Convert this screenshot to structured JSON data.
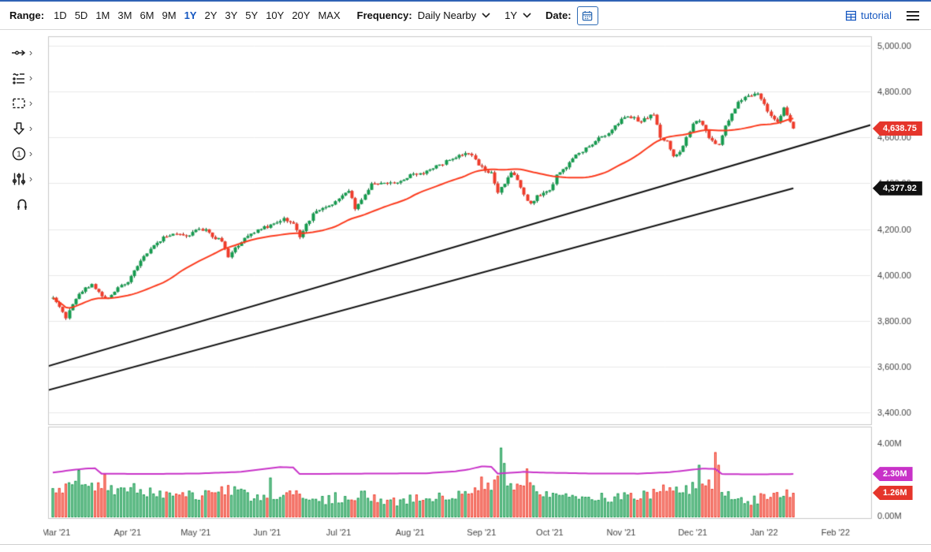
{
  "toolbar": {
    "range_label": "Range:",
    "range_options": [
      "1D",
      "5D",
      "1M",
      "3M",
      "6M",
      "9M",
      "1Y",
      "2Y",
      "3Y",
      "5Y",
      "10Y",
      "20Y",
      "MAX"
    ],
    "range_selected": "1Y",
    "frequency_label": "Frequency:",
    "frequency_value": "Daily Nearby",
    "period_value": "1Y",
    "date_label": "Date:",
    "tutorial_label": "tutorial"
  },
  "sidebar": {
    "chevron": "›",
    "tools": [
      "trendline-tool",
      "indicators-tool",
      "shapes-tool",
      "arrows-tool",
      "numbers-tool",
      "settings-tool",
      "magnet-tool"
    ]
  },
  "chart_data": {
    "type": "candlestick",
    "seed": 1337,
    "colors": {
      "up": "#169b4f",
      "up_stroke": "#0d5f31",
      "down": "#ef3b2a",
      "down_stroke": "#8f1d12",
      "ma": "#fb3b1e",
      "trend": "#111111",
      "open_interest": "#c832c8",
      "grid": "#e8e8e8",
      "border": "#c9c9c9",
      "axis_text": "#444444",
      "accent_blue": "#1557c0"
    },
    "price_panel": {
      "days": 229,
      "close_jitter": 7,
      "wick_extra": 9,
      "ma_period": 35,
      "ylim": [
        3400,
        5000
      ],
      "y_ticks": [
        {
          "label": "5,000.00",
          "value": 5000
        },
        {
          "label": "4,800.00",
          "value": 4800
        },
        {
          "label": "4,600.00",
          "value": 4600
        },
        {
          "label": "4,400.00",
          "value": 4400
        },
        {
          "label": "4,200.00",
          "value": 4200
        },
        {
          "label": "4,000.00",
          "value": 4000
        },
        {
          "label": "3,800.00",
          "value": 3800
        },
        {
          "label": "3,600.00",
          "value": 3600
        },
        {
          "label": "3,400.00",
          "value": 3400
        }
      ],
      "last_price": {
        "label": "4,638.75",
        "value": 4638.75,
        "color": "#e5352b"
      },
      "trendline_value": {
        "label": "4,377.92",
        "value": 4377.92,
        "color": "#111111"
      },
      "trendlines": [
        {
          "from_day": -2,
          "from_price": 3600,
          "to_day": 252,
          "to_price": 4655
        },
        {
          "from_day": -2,
          "from_price": 3495,
          "to_day": 228,
          "to_price": 4377.92
        }
      ],
      "close_waypoints": [
        [
          0,
          3905
        ],
        [
          2,
          3860
        ],
        [
          4,
          3812
        ],
        [
          6,
          3878
        ],
        [
          9,
          3932
        ],
        [
          12,
          3962
        ],
        [
          14,
          3925
        ],
        [
          16,
          3890
        ],
        [
          18,
          3918
        ],
        [
          21,
          3955
        ],
        [
          23,
          3972
        ],
        [
          25,
          4015
        ],
        [
          28,
          4080
        ],
        [
          31,
          4128
        ],
        [
          34,
          4165
        ],
        [
          38,
          4180
        ],
        [
          41,
          4170
        ],
        [
          44,
          4192
        ],
        [
          47,
          4202
        ],
        [
          49,
          4168
        ],
        [
          52,
          4150
        ],
        [
          54,
          4072
        ],
        [
          56,
          4118
        ],
        [
          59,
          4162
        ],
        [
          62,
          4188
        ],
        [
          64,
          4204
        ],
        [
          66,
          4208
        ],
        [
          69,
          4228
        ],
        [
          71,
          4246
        ],
        [
          74,
          4222
        ],
        [
          76,
          4166
        ],
        [
          78,
          4224
        ],
        [
          81,
          4280
        ],
        [
          84,
          4297
        ],
        [
          87,
          4320
        ],
        [
          89,
          4352
        ],
        [
          91,
          4365
        ],
        [
          93,
          4292
        ],
        [
          95,
          4328
        ],
        [
          98,
          4392
        ],
        [
          101,
          4405
        ],
        [
          104,
          4398
        ],
        [
          107,
          4411
        ],
        [
          110,
          4432
        ],
        [
          113,
          4442
        ],
        [
          116,
          4460
        ],
        [
          119,
          4480
        ],
        [
          122,
          4502
        ],
        [
          125,
          4522
        ],
        [
          127,
          4537
        ],
        [
          129,
          4524
        ],
        [
          131,
          4480
        ],
        [
          133,
          4460
        ],
        [
          135,
          4444
        ],
        [
          137,
          4360
        ],
        [
          139,
          4396
        ],
        [
          141,
          4442
        ],
        [
          143,
          4418
        ],
        [
          145,
          4352
        ],
        [
          147,
          4308
        ],
        [
          149,
          4346
        ],
        [
          151,
          4360
        ],
        [
          153,
          4364
        ],
        [
          155,
          4438
        ],
        [
          158,
          4472
        ],
        [
          161,
          4520
        ],
        [
          164,
          4550
        ],
        [
          166,
          4566
        ],
        [
          168,
          4596
        ],
        [
          170,
          4608
        ],
        [
          172,
          4632
        ],
        [
          174,
          4662
        ],
        [
          176,
          4688
        ],
        [
          179,
          4682
        ],
        [
          181,
          4668
        ],
        [
          183,
          4690
        ],
        [
          185,
          4700
        ],
        [
          187,
          4600
        ],
        [
          189,
          4582
        ],
        [
          191,
          4520
        ],
        [
          193,
          4540
        ],
        [
          195,
          4595
        ],
        [
          197,
          4660
        ],
        [
          199,
          4672
        ],
        [
          201,
          4625
        ],
        [
          203,
          4580
        ],
        [
          205,
          4572
        ],
        [
          207,
          4650
        ],
        [
          209,
          4702
        ],
        [
          211,
          4758
        ],
        [
          213,
          4780
        ],
        [
          215,
          4788
        ],
        [
          217,
          4786
        ],
        [
          219,
          4742
        ],
        [
          221,
          4688
        ],
        [
          223,
          4670
        ],
        [
          225,
          4726
        ],
        [
          227,
          4668
        ],
        [
          228,
          4638.75
        ]
      ]
    },
    "volume_panel": {
      "ylim": [
        0,
        4
      ],
      "y_ticks": [
        {
          "label": "4.00M",
          "value": 4
        },
        {
          "label": "0.00M",
          "value": 0
        }
      ],
      "last_volume": {
        "label": "1.26M",
        "value": 1.26,
        "color": "#e5352b"
      },
      "open_interest": {
        "label": "2.30M",
        "value": 2.3,
        "color": "#c832c8",
        "waypoints": [
          [
            0,
            2.38
          ],
          [
            6,
            2.52
          ],
          [
            10,
            2.6
          ],
          [
            13,
            2.62
          ],
          [
            15,
            2.32
          ],
          [
            30,
            2.3
          ],
          [
            45,
            2.33
          ],
          [
            58,
            2.42
          ],
          [
            64,
            2.55
          ],
          [
            70,
            2.68
          ],
          [
            74,
            2.66
          ],
          [
            76,
            2.3
          ],
          [
            95,
            2.32
          ],
          [
            115,
            2.34
          ],
          [
            124,
            2.45
          ],
          [
            128,
            2.55
          ],
          [
            132,
            2.72
          ],
          [
            135,
            2.7
          ],
          [
            137,
            2.32
          ],
          [
            145,
            2.42
          ],
          [
            150,
            2.38
          ],
          [
            165,
            2.33
          ],
          [
            180,
            2.32
          ],
          [
            190,
            2.4
          ],
          [
            196,
            2.52
          ],
          [
            200,
            2.6
          ],
          [
            204,
            2.58
          ],
          [
            206,
            2.3
          ],
          [
            215,
            2.28
          ],
          [
            228,
            2.3
          ]
        ]
      },
      "volume_jitter": 0.32,
      "volume_waypoints": [
        [
          0,
          1.45
        ],
        [
          6,
          1.7
        ],
        [
          10,
          1.9
        ],
        [
          14,
          1.6
        ],
        [
          18,
          1.45
        ],
        [
          24,
          1.55
        ],
        [
          30,
          1.25
        ],
        [
          38,
          1.1
        ],
        [
          44,
          1.05
        ],
        [
          50,
          1.25
        ],
        [
          54,
          1.45
        ],
        [
          60,
          1.05
        ],
        [
          66,
          0.95
        ],
        [
          72,
          1.15
        ],
        [
          78,
          1.0
        ],
        [
          84,
          0.9
        ],
        [
          90,
          1.05
        ],
        [
          94,
          1.15
        ],
        [
          100,
          0.95
        ],
        [
          106,
          0.85
        ],
        [
          112,
          0.9
        ],
        [
          118,
          0.95
        ],
        [
          124,
          1.05
        ],
        [
          130,
          1.35
        ],
        [
          136,
          1.7
        ],
        [
          140,
          1.5
        ],
        [
          144,
          1.55
        ],
        [
          148,
          1.6
        ],
        [
          152,
          1.3
        ],
        [
          156,
          1.15
        ],
        [
          160,
          1.05
        ],
        [
          166,
          0.95
        ],
        [
          172,
          1.0
        ],
        [
          178,
          1.05
        ],
        [
          184,
          1.1
        ],
        [
          188,
          1.45
        ],
        [
          192,
          1.35
        ],
        [
          196,
          1.5
        ],
        [
          200,
          1.7
        ],
        [
          204,
          1.8
        ],
        [
          208,
          1.2
        ],
        [
          212,
          0.95
        ],
        [
          216,
          0.85
        ],
        [
          220,
          1.0
        ],
        [
          224,
          1.15
        ],
        [
          228,
          1.26
        ]
      ],
      "spikes": {
        "8": 2.52,
        "16": 2.3,
        "67": 2.1,
        "132": 2.15,
        "137": 2.2,
        "138": 3.75,
        "139": 2.9,
        "146": 2.6,
        "199": 2.8,
        "204": 3.5,
        "205": 2.8
      }
    },
    "x_axis": {
      "labels": [
        "Mar '21",
        "Apr '21",
        "May '21",
        "Jun '21",
        "Jul '21",
        "Aug '21",
        "Sep '21",
        "Oct '21",
        "Nov '21",
        "Dec '21",
        "Jan '22",
        "Feb '22"
      ],
      "month_start_days": [
        1,
        23,
        44,
        66,
        88,
        110,
        132,
        153,
        175,
        197,
        219,
        241
      ]
    }
  }
}
